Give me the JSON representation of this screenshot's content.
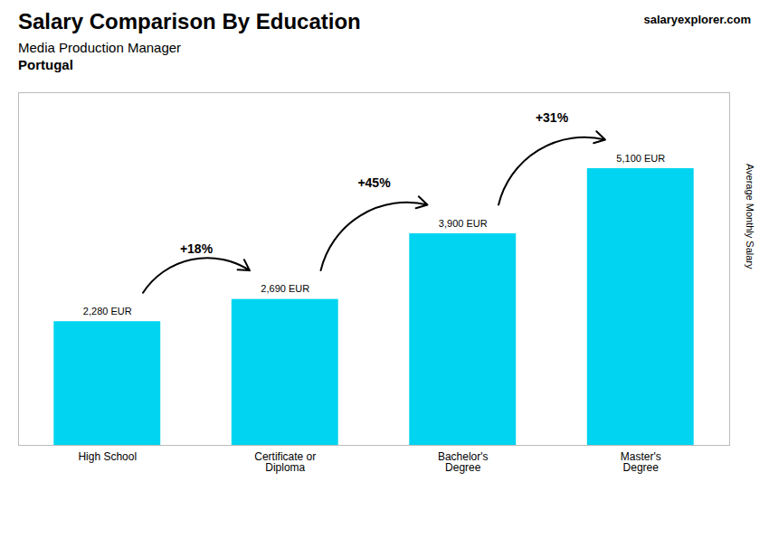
{
  "chart_data": {
    "type": "bar",
    "title": "Salary Comparison By Education",
    "subtitle": [
      "Media Production Manager",
      "Portugal"
    ],
    "source": "salaryexplorer.com",
    "ylabel": "Average Monthly Salary",
    "categories": [
      "High School",
      "Certificate or\nDiploma",
      "Bachelor's\nDegree",
      "Master's\nDegree"
    ],
    "values": [
      2280,
      2690,
      3900,
      5100
    ],
    "value_labels": [
      "2,280 EUR",
      "2,690 EUR",
      "3,900 EUR",
      "5,100 EUR"
    ],
    "data_labels": true,
    "annotations": [
      "+18%",
      "+45%",
      "+31%"
    ],
    "color": "#00d4f0",
    "ylim": [
      0,
      6500
    ],
    "tick_labels": "x",
    "grid": false
  }
}
